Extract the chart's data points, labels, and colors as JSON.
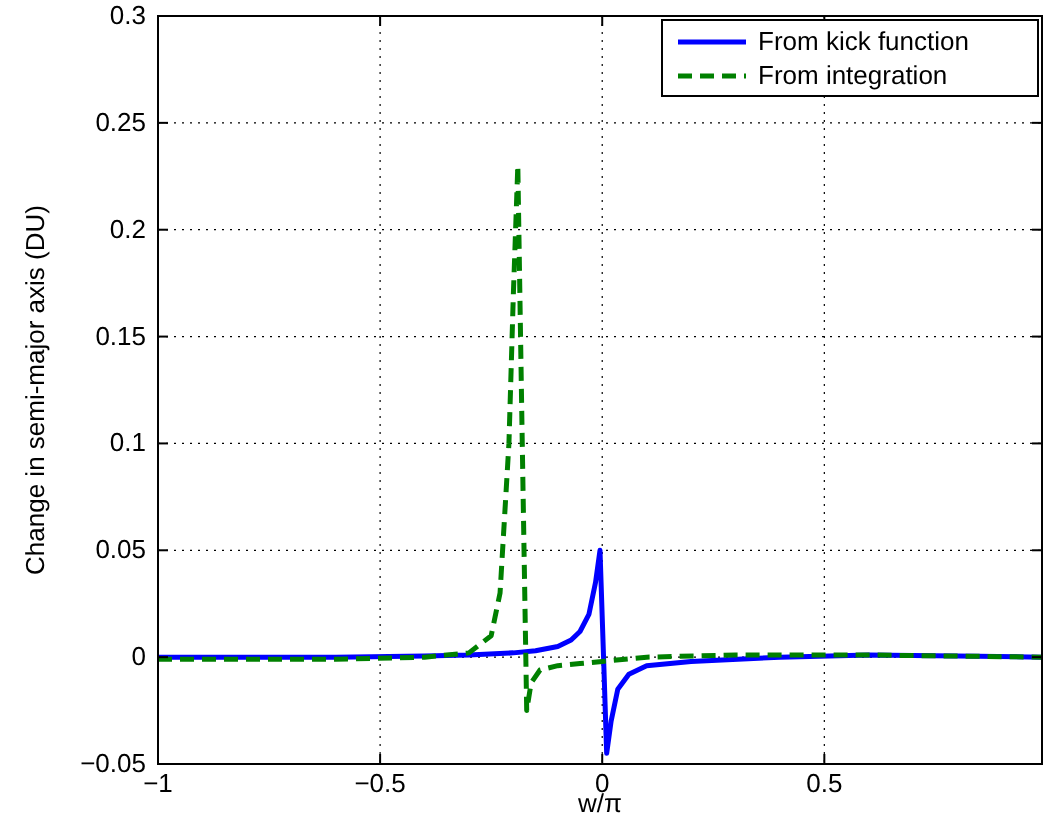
{
  "chart_data": {
    "type": "line",
    "xlabel": "w/π",
    "ylabel": "Change in semi-major axis (DU)",
    "xlim": [
      -1,
      0.99
    ],
    "ylim": [
      -0.05,
      0.3
    ],
    "xticks": [
      -1,
      -0.5,
      0,
      0.5
    ],
    "yticks": [
      -0.05,
      0,
      0.05,
      0.1,
      0.15,
      0.2,
      0.25,
      0.3
    ],
    "grid": true,
    "legend": "top right",
    "series": [
      {
        "name": "From kick function",
        "color": "#0000ff",
        "line_style": "solid",
        "x": [
          -1,
          -0.8,
          -0.6,
          -0.4,
          -0.3,
          -0.2,
          -0.15,
          -0.1,
          -0.07,
          -0.05,
          -0.03,
          -0.015,
          -0.005,
          0.003,
          0.01,
          0.02,
          0.035,
          0.06,
          0.1,
          0.2,
          0.4,
          0.6,
          0.8,
          0.99
        ],
        "values": [
          0,
          0,
          0,
          0.0005,
          0.001,
          0.002,
          0.003,
          0.005,
          0.008,
          0.012,
          0.02,
          0.035,
          0.05,
          0,
          -0.045,
          -0.03,
          -0.015,
          -0.008,
          -0.004,
          -0.002,
          0,
          0.001,
          0.0005,
          0
        ]
      },
      {
        "name": "From integration",
        "color": "#008000",
        "line_style": "dashed",
        "x": [
          -1,
          -0.6,
          -0.4,
          -0.3,
          -0.25,
          -0.23,
          -0.21,
          -0.2,
          -0.19,
          -0.18,
          -0.17,
          -0.16,
          -0.14,
          -0.1,
          -0.05,
          0,
          0.1,
          0.3,
          0.6,
          0.99
        ],
        "values": [
          -0.001,
          -0.001,
          0,
          0.002,
          0.01,
          0.03,
          0.1,
          0.17,
          0.23,
          0.1,
          -0.025,
          -0.012,
          -0.006,
          -0.004,
          -0.003,
          -0.002,
          0,
          0.001,
          0.001,
          0
        ]
      }
    ]
  }
}
